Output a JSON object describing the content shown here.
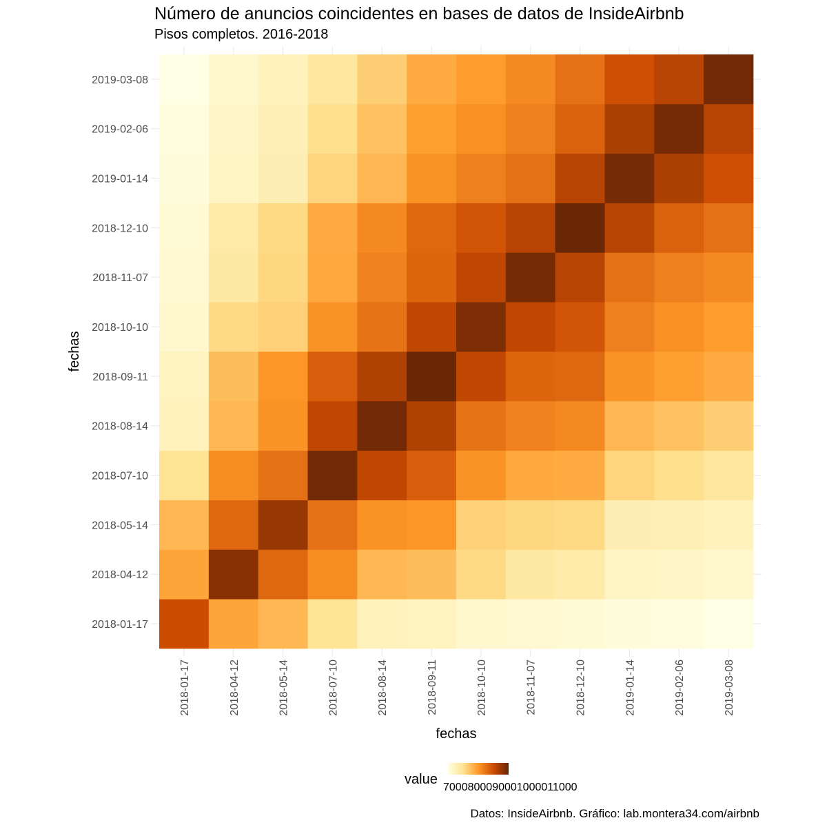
{
  "title": "Número de anuncios coincidentes en bases de datos de InsideAirbnb",
  "subtitle": "Pisos completos. 2016-2018",
  "caption": "Datos: InsideAirbnb. Gráfico: lab.montera34.com/airbnb",
  "colors": {
    "low": "#ffffe5",
    "mid1": "#fee391",
    "mid2": "#fe9929",
    "mid3": "#cc4c02",
    "high": "#662506",
    "grid": "#ebebeb"
  },
  "chart_data": {
    "type": "heatmap",
    "title": "Número de anuncios coincidentes en bases de datos de InsideAirbnb",
    "subtitle": "Pisos completos. 2016-2018",
    "xlabel": "fechas",
    "ylabel": "fechas",
    "x": [
      "2018-01-17",
      "2018-04-12",
      "2018-05-14",
      "2018-07-10",
      "2018-08-14",
      "2018-09-11",
      "2018-10-10",
      "2018-11-07",
      "2018-12-10",
      "2019-01-14",
      "2019-02-06",
      "2019-03-08"
    ],
    "y": [
      "2018-01-17",
      "2018-04-12",
      "2018-05-14",
      "2018-07-10",
      "2018-08-14",
      "2018-09-11",
      "2018-10-10",
      "2018-11-07",
      "2018-12-10",
      "2019-01-14",
      "2019-02-06",
      "2019-03-08"
    ],
    "values_scale": "relative 0-1 (0 = lightest, 1 = darkest)",
    "values": [
      [
        0.75,
        0.46,
        0.4,
        0.24,
        0.12,
        0.11,
        0.07,
        0.06,
        0.05,
        0.03,
        0.02,
        0.0
      ],
      [
        0.46,
        0.92,
        0.66,
        0.54,
        0.4,
        0.38,
        0.28,
        0.2,
        0.18,
        0.1,
        0.09,
        0.07
      ],
      [
        0.4,
        0.66,
        0.88,
        0.63,
        0.52,
        0.51,
        0.31,
        0.29,
        0.28,
        0.15,
        0.14,
        0.12
      ],
      [
        0.24,
        0.54,
        0.63,
        0.97,
        0.78,
        0.69,
        0.52,
        0.45,
        0.44,
        0.3,
        0.26,
        0.21
      ],
      [
        0.12,
        0.4,
        0.52,
        0.78,
        0.97,
        0.82,
        0.62,
        0.57,
        0.55,
        0.4,
        0.36,
        0.32
      ],
      [
        0.11,
        0.38,
        0.51,
        0.69,
        0.82,
        0.99,
        0.78,
        0.67,
        0.66,
        0.52,
        0.48,
        0.44
      ],
      [
        0.07,
        0.28,
        0.31,
        0.52,
        0.62,
        0.78,
        0.94,
        0.78,
        0.72,
        0.58,
        0.53,
        0.49
      ],
      [
        0.06,
        0.2,
        0.29,
        0.45,
        0.57,
        0.67,
        0.78,
        0.96,
        0.8,
        0.63,
        0.58,
        0.55
      ],
      [
        0.05,
        0.18,
        0.28,
        0.44,
        0.55,
        0.66,
        0.72,
        0.8,
        0.99,
        0.8,
        0.68,
        0.63
      ],
      [
        0.03,
        0.1,
        0.15,
        0.3,
        0.4,
        0.52,
        0.58,
        0.63,
        0.8,
        0.96,
        0.83,
        0.74
      ],
      [
        0.02,
        0.09,
        0.14,
        0.26,
        0.36,
        0.48,
        0.53,
        0.58,
        0.68,
        0.83,
        0.96,
        0.8
      ],
      [
        0.0,
        0.07,
        0.12,
        0.21,
        0.32,
        0.44,
        0.49,
        0.55,
        0.63,
        0.74,
        0.8,
        0.97
      ]
    ],
    "legend": {
      "title": "value",
      "position": "bottom",
      "labels": [
        "7000",
        "8000",
        "9000",
        "10000",
        "11000"
      ],
      "label_overlap_text": "7000800090001000011000"
    },
    "grid": true
  }
}
